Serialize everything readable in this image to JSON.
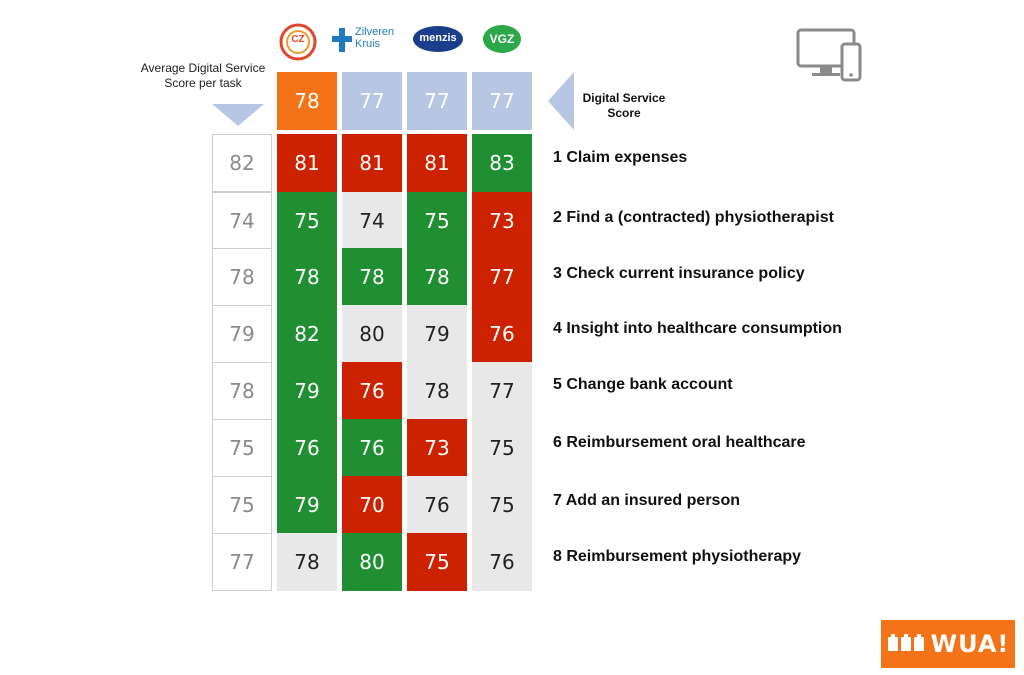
{
  "chart_data": {
    "type": "table",
    "header_labels": {
      "avg_per_task": "Average Digital Service Score per task",
      "digital_service_score": "Digital Service Score"
    },
    "insurers": [
      {
        "name": "CZ",
        "logo_text": "CZ",
        "color": "#e2462a",
        "score": 78
      },
      {
        "name": "Zilveren Kruis",
        "logo_text": "Zilveren Kruis",
        "color": "#1f7ac2",
        "score": 77
      },
      {
        "name": "menzis",
        "logo_text": "menzis",
        "color": "#1b3e8c",
        "score": 77
      },
      {
        "name": "VGZ",
        "logo_text": "VGZ",
        "color": "#2aa84a",
        "score": 77
      }
    ],
    "tasks": [
      {
        "label": "1 Claim expenses",
        "average": 82,
        "scores": [
          81,
          81,
          81,
          83
        ],
        "status": [
          "red",
          "red",
          "red",
          "green"
        ]
      },
      {
        "label": "2 Find a (contracted) physiotherapist",
        "average": 74,
        "scores": [
          75,
          74,
          75,
          73
        ],
        "status": [
          "green",
          "grey",
          "green",
          "red"
        ]
      },
      {
        "label": "3 Check current insurance policy",
        "average": 78,
        "scores": [
          78,
          78,
          78,
          77
        ],
        "status": [
          "green",
          "green",
          "green",
          "red"
        ]
      },
      {
        "label": "4 Insight into healthcare consumption",
        "average": 79,
        "scores": [
          82,
          80,
          79,
          76
        ],
        "status": [
          "green",
          "grey",
          "grey",
          "red"
        ]
      },
      {
        "label": "5 Change bank account",
        "average": 78,
        "scores": [
          79,
          76,
          78,
          77
        ],
        "status": [
          "green",
          "red",
          "grey",
          "grey"
        ]
      },
      {
        "label": "6 Reimbursement oral healthcare",
        "average": 75,
        "scores": [
          76,
          76,
          73,
          75
        ],
        "status": [
          "green",
          "green",
          "red",
          "grey"
        ]
      },
      {
        "label": "7 Add an insured person",
        "average": 75,
        "scores": [
          79,
          70,
          76,
          75
        ],
        "status": [
          "green",
          "red",
          "grey",
          "grey"
        ]
      },
      {
        "label": "8 Reimbursement physiotherapy",
        "average": 77,
        "scores": [
          78,
          80,
          75,
          76
        ],
        "status": [
          "grey",
          "green",
          "red",
          "grey"
        ]
      }
    ],
    "colors": {
      "green": "#1f8f32",
      "red": "#cc2200",
      "grey": "#e8e8e8",
      "top_score": "#b7c6e2",
      "top_score_highlight": "#f47316"
    },
    "device_icon": "desktop-tablet-icon"
  },
  "brand": {
    "logo_text": "WUA!",
    "color": "#f47316"
  }
}
